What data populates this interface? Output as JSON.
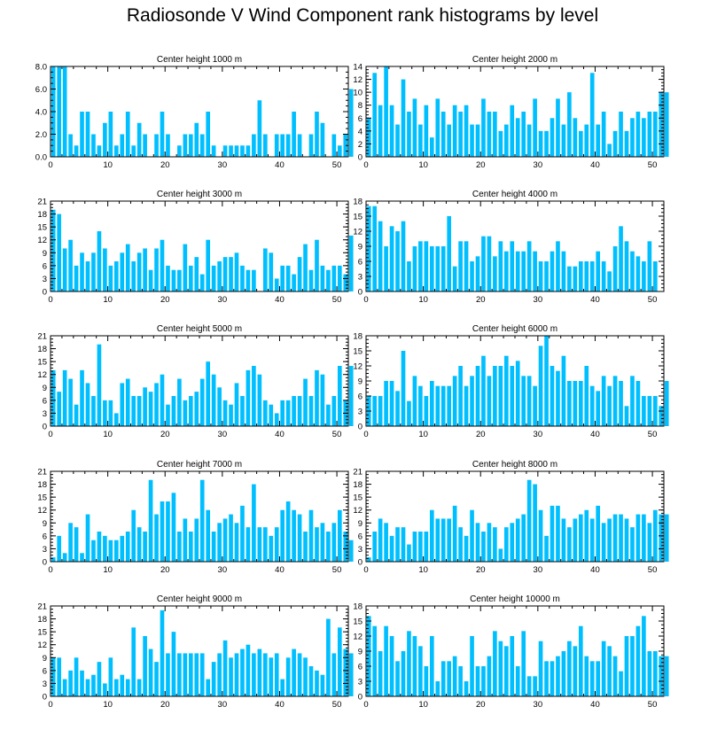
{
  "title": "Radiosonde V Wind Component rank histograms by level",
  "colors": {
    "bar": "#00BFFF",
    "axis": "#000000",
    "background": "#ffffff"
  },
  "chart_data": [
    {
      "type": "bar",
      "title": "Center height 1000 m",
      "xticks": [
        0,
        10,
        20,
        30,
        40,
        50
      ],
      "xlim": [
        0,
        52
      ],
      "yticks": [
        0.0,
        2.0,
        4.0,
        6.0,
        8.0
      ],
      "ytick_labels": [
        "0.0",
        "2.0",
        "4.0",
        "6.0",
        "8.0"
      ],
      "ylim": [
        0,
        8
      ],
      "values": [
        8,
        8,
        8,
        2,
        1,
        4,
        4,
        2,
        1,
        3,
        4,
        1,
        2,
        4,
        1,
        3,
        2,
        0,
        2,
        4,
        2,
        0,
        1,
        2,
        2,
        3,
        2,
        4,
        1,
        0,
        1,
        1,
        1,
        1,
        1,
        2,
        5,
        2,
        0,
        2,
        2,
        2,
        4,
        2,
        0,
        2,
        4,
        3,
        0,
        2,
        1,
        2,
        6
      ]
    },
    {
      "type": "bar",
      "title": "Center height 2000 m",
      "xticks": [
        0,
        10,
        20,
        30,
        40,
        50
      ],
      "xlim": [
        0,
        52
      ],
      "yticks": [
        0,
        2,
        4,
        6,
        8,
        10,
        12,
        14
      ],
      "ytick_labels": [
        "0",
        "2",
        "4",
        "6",
        "8",
        "10",
        "12",
        "14"
      ],
      "ylim": [
        0,
        14
      ],
      "values": [
        6,
        13,
        8,
        14,
        8,
        5,
        12,
        7,
        9,
        5,
        8,
        3,
        9,
        7,
        5,
        8,
        7,
        8,
        5,
        5,
        9,
        7,
        7,
        4,
        5,
        8,
        6,
        7,
        5,
        9,
        4,
        4,
        6,
        9,
        5,
        10,
        6,
        4,
        5,
        13,
        5,
        7,
        2,
        4,
        7,
        4,
        6,
        7,
        6,
        7,
        7,
        10,
        10
      ]
    },
    {
      "type": "bar",
      "title": "Center height 3000 m",
      "xticks": [
        0,
        10,
        20,
        30,
        40,
        50
      ],
      "xlim": [
        0,
        52
      ],
      "yticks": [
        0,
        3,
        6,
        9,
        12,
        15,
        18,
        21
      ],
      "ytick_labels": [
        "0",
        "3",
        "6",
        "9",
        "12",
        "15",
        "18",
        "21"
      ],
      "ylim": [
        0,
        21
      ],
      "values": [
        19,
        18,
        10,
        12,
        6,
        9,
        7,
        9,
        14,
        10,
        6,
        7,
        9,
        11,
        7,
        9,
        10,
        5,
        10,
        12,
        6,
        5,
        5,
        11,
        6,
        8,
        4,
        12,
        6,
        7,
        8,
        8,
        9,
        6,
        5,
        5,
        0,
        10,
        9,
        3,
        6,
        6,
        4,
        8,
        11,
        5,
        12,
        6,
        5,
        6,
        6,
        4,
        13
      ]
    },
    {
      "type": "bar",
      "title": "Center height 4000 m",
      "xticks": [
        0,
        10,
        20,
        30,
        40,
        50
      ],
      "xlim": [
        0,
        52
      ],
      "yticks": [
        0,
        3,
        6,
        9,
        12,
        15,
        18
      ],
      "ytick_labels": [
        "0",
        "3",
        "6",
        "9",
        "12",
        "15",
        "18"
      ],
      "ylim": [
        0,
        18
      ],
      "values": [
        17,
        17,
        14,
        9,
        13,
        12,
        14,
        6,
        9,
        10,
        10,
        9,
        9,
        9,
        15,
        5,
        10,
        10,
        6,
        7,
        11,
        11,
        7,
        10,
        8,
        10,
        8,
        8,
        10,
        8,
        6,
        6,
        8,
        10,
        8,
        5,
        5,
        6,
        6,
        6,
        8,
        6,
        4,
        9,
        13,
        10,
        8,
        7,
        6,
        10,
        6,
        0,
        0
      ]
    },
    {
      "type": "bar",
      "title": "Center height 5000 m",
      "xticks": [
        0,
        10,
        20,
        30,
        40,
        50
      ],
      "xlim": [
        0,
        52
      ],
      "yticks": [
        0,
        3,
        6,
        9,
        12,
        15,
        18,
        21
      ],
      "ytick_labels": [
        "0",
        "3",
        "6",
        "9",
        "12",
        "15",
        "18",
        "21"
      ],
      "ylim": [
        0,
        21
      ],
      "values": [
        13,
        8,
        13,
        11,
        5,
        13,
        10,
        7,
        19,
        6,
        6,
        3,
        10,
        11,
        7,
        7,
        9,
        8,
        10,
        12,
        5,
        7,
        11,
        6,
        7,
        8,
        11,
        15,
        12,
        9,
        6,
        5,
        10,
        7,
        13,
        14,
        12,
        6,
        5,
        3,
        6,
        6,
        7,
        7,
        11,
        7,
        13,
        12,
        5,
        7,
        14,
        6,
        14
      ]
    },
    {
      "type": "bar",
      "title": "Center height 6000 m",
      "xticks": [
        0,
        10,
        20,
        30,
        40,
        50
      ],
      "xlim": [
        0,
        52
      ],
      "yticks": [
        0,
        3,
        6,
        9,
        12,
        15,
        18
      ],
      "ytick_labels": [
        "0",
        "3",
        "6",
        "9",
        "12",
        "15",
        "18"
      ],
      "ylim": [
        0,
        18
      ],
      "values": [
        6,
        6,
        6,
        9,
        9,
        7,
        15,
        5,
        10,
        8,
        6,
        9,
        8,
        8,
        8,
        10,
        12,
        8,
        10,
        12,
        14,
        10,
        12,
        12,
        14,
        12,
        13,
        10,
        10,
        8,
        16,
        18,
        12,
        11,
        14,
        9,
        9,
        9,
        12,
        8,
        7,
        10,
        8,
        10,
        9,
        4,
        10,
        9,
        6,
        6,
        6,
        4,
        9
      ]
    },
    {
      "type": "bar",
      "title": "Center height 7000 m",
      "xticks": [
        0,
        10,
        20,
        30,
        40,
        50
      ],
      "xlim": [
        0,
        52
      ],
      "yticks": [
        0,
        3,
        6,
        9,
        12,
        15,
        18,
        21
      ],
      "ytick_labels": [
        "0",
        "3",
        "6",
        "9",
        "12",
        "15",
        "18",
        "21"
      ],
      "ylim": [
        0,
        21
      ],
      "values": [
        1,
        6,
        2,
        9,
        8,
        2,
        11,
        5,
        7,
        6,
        5,
        5,
        6,
        7,
        12,
        8,
        7,
        19,
        11,
        14,
        14,
        16,
        7,
        10,
        7,
        10,
        19,
        12,
        7,
        9,
        10,
        11,
        9,
        13,
        8,
        18,
        8,
        8,
        6,
        8,
        12,
        14,
        12,
        11,
        7,
        12,
        8,
        9,
        7,
        9,
        12,
        7,
        5
      ]
    },
    {
      "type": "bar",
      "title": "Center height 8000 m",
      "xticks": [
        0,
        10,
        20,
        30,
        40,
        50
      ],
      "xlim": [
        0,
        52
      ],
      "yticks": [
        0,
        3,
        6,
        9,
        12,
        15,
        18,
        21
      ],
      "ytick_labels": [
        "0",
        "3",
        "6",
        "9",
        "12",
        "15",
        "18",
        "21"
      ],
      "ylim": [
        0,
        21
      ],
      "values": [
        1,
        7,
        10,
        9,
        6,
        8,
        8,
        4,
        7,
        7,
        7,
        12,
        10,
        10,
        10,
        13,
        8,
        6,
        12,
        9,
        7,
        9,
        8,
        3,
        8,
        9,
        10,
        11,
        19,
        18,
        12,
        6,
        13,
        13,
        10,
        8,
        10,
        11,
        12,
        10,
        13,
        9,
        10,
        11,
        11,
        10,
        8,
        11,
        11,
        9,
        12,
        11,
        11
      ]
    },
    {
      "type": "bar",
      "title": "Center height 9000 m",
      "xticks": [
        0,
        10,
        20,
        30,
        40,
        50
      ],
      "xlim": [
        0,
        52
      ],
      "yticks": [
        0,
        3,
        6,
        9,
        12,
        15,
        18,
        21
      ],
      "ytick_labels": [
        "0",
        "3",
        "6",
        "9",
        "12",
        "15",
        "18",
        "21"
      ],
      "ylim": [
        0,
        21
      ],
      "values": [
        9,
        9,
        4,
        6,
        9,
        6,
        4,
        5,
        8,
        3,
        9,
        4,
        5,
        4,
        16,
        4,
        14,
        11,
        8,
        20,
        10,
        15,
        10,
        10,
        10,
        10,
        10,
        4,
        8,
        10,
        13,
        9,
        10,
        11,
        12,
        10,
        11,
        10,
        9,
        10,
        4,
        9,
        11,
        10,
        9,
        7,
        6,
        5,
        18,
        10,
        16,
        11,
        10
      ]
    },
    {
      "type": "bar",
      "title": "Center height 10000 m",
      "xticks": [
        0,
        10,
        20,
        30,
        40,
        50
      ],
      "xlim": [
        0,
        52
      ],
      "yticks": [
        0,
        3,
        6,
        9,
        12,
        15,
        18
      ],
      "ytick_labels": [
        "0",
        "3",
        "6",
        "9",
        "12",
        "15",
        "18"
      ],
      "ylim": [
        0,
        18
      ],
      "values": [
        16,
        14,
        9,
        14,
        12,
        7,
        9,
        13,
        12,
        10,
        6,
        12,
        3,
        7,
        7,
        8,
        6,
        3,
        12,
        6,
        6,
        8,
        13,
        11,
        10,
        12,
        6,
        13,
        4,
        4,
        11,
        7,
        7,
        8,
        9,
        11,
        10,
        14,
        8,
        7,
        7,
        11,
        10,
        8,
        5,
        12,
        12,
        14,
        16,
        9,
        9,
        8,
        8
      ]
    }
  ]
}
